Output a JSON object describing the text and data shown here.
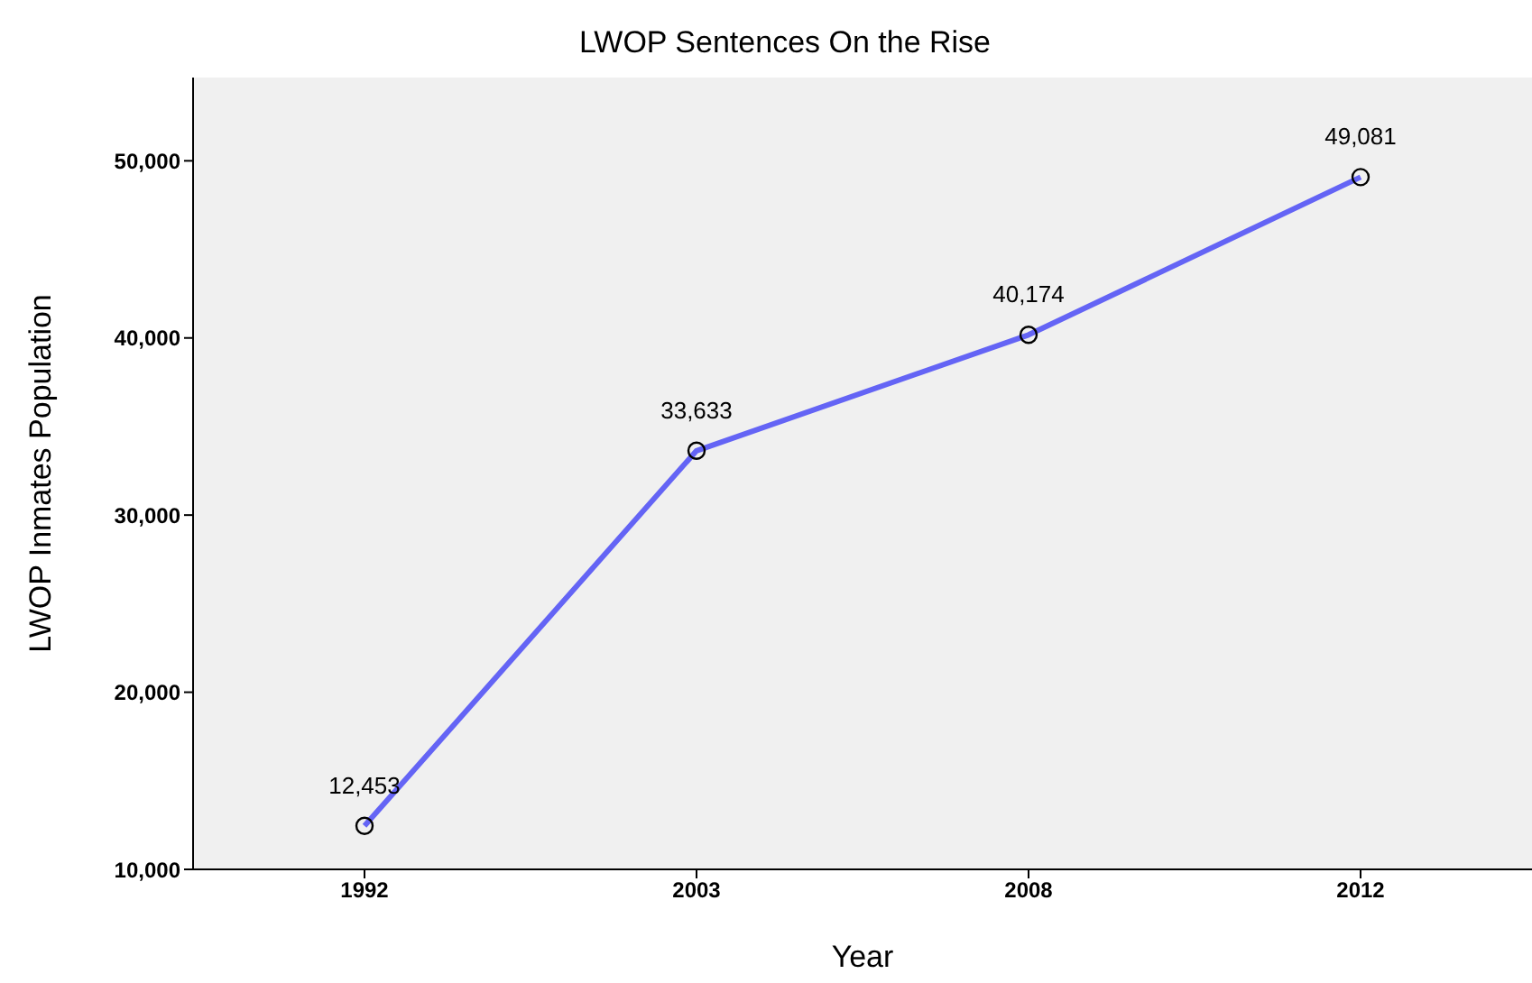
{
  "chart_data": {
    "type": "line",
    "title": "LWOP Sentences On the Rise",
    "xlabel": "Year",
    "ylabel": "LWOP Inmates Population",
    "categories": [
      "1992",
      "2003",
      "2008",
      "2012"
    ],
    "series": [
      {
        "color": "#6464f5",
        "values": [
          12453,
          33633,
          40174,
          49081
        ],
        "value_labels": [
          "12,453",
          "33,633",
          "40,174",
          "49,081"
        ]
      }
    ],
    "ylim": [
      10000,
      54700
    ],
    "yticks": [
      {
        "value": 10000,
        "label": "10,000"
      },
      {
        "value": 20000,
        "label": "20,000"
      },
      {
        "value": 30000,
        "label": "30,000"
      },
      {
        "value": 40000,
        "label": "40,000"
      },
      {
        "value": 50000,
        "label": "50,000"
      }
    ],
    "grid": false,
    "marker": "circle",
    "line_style": "solid"
  }
}
